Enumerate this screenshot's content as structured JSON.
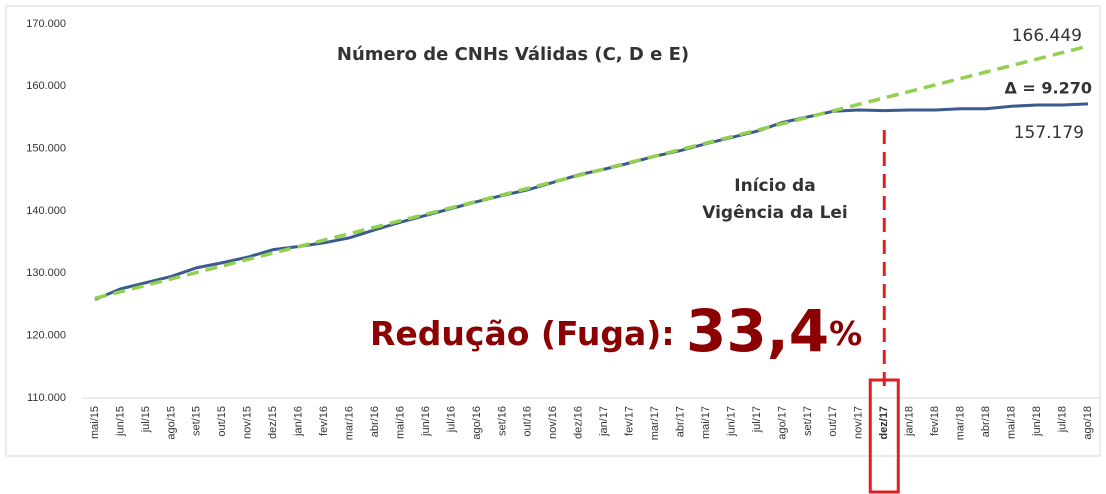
{
  "chart_data": {
    "type": "line",
    "title": "Número de CNHs Válidas (C, D e E)",
    "categories": [
      "mai/15",
      "jun/15",
      "jul/15",
      "ago/15",
      "set/15",
      "out/15",
      "nov/15",
      "dez/15",
      "jan/16",
      "fev/16",
      "mar/16",
      "abr/16",
      "mai/16",
      "jun/16",
      "jul/16",
      "ago/16",
      "set/16",
      "out/16",
      "nov/16",
      "dez/16",
      "jan/17",
      "fev/17",
      "mar/17",
      "abr/17",
      "mai/17",
      "jun/17",
      "jul/17",
      "ago/17",
      "set/17",
      "out/17",
      "nov/17",
      "dez/17",
      "jan/18",
      "fev/18",
      "mar/18",
      "abr/18",
      "mai/18",
      "jun/18",
      "jul/18",
      "ago/18"
    ],
    "series": [
      {
        "color": "#3b5b8f",
        "dash": false,
        "values": [
          125800,
          127500,
          128500,
          129500,
          130900,
          131700,
          132600,
          133800,
          134300,
          134900,
          135700,
          137000,
          138200,
          139300,
          140400,
          141500,
          142500,
          143400,
          144600,
          145800,
          146700,
          147700,
          148800,
          149700,
          150800,
          151800,
          152800,
          154200,
          155100,
          156000,
          156200,
          156100,
          156200,
          156200,
          156400,
          156400,
          156800,
          157000,
          157000,
          157179
        ]
      },
      {
        "color": "#92d050",
        "dash": true,
        "values": [
          126000,
          127037,
          128074,
          129111,
          130149,
          131186,
          132223,
          133260,
          134297,
          135334,
          136371,
          137408,
          138446,
          139483,
          140520,
          141557,
          142594,
          143631,
          144668,
          145705,
          146743,
          147780,
          148817,
          149854,
          150891,
          151928,
          152965,
          154002,
          155040,
          156077,
          157114,
          158151,
          159188,
          160225,
          161262,
          162299,
          163337,
          164374,
          165411,
          166449
        ]
      }
    ],
    "ylim": [
      110000,
      170000
    ],
    "yticks": [
      {
        "value": 110000,
        "label": "110.000"
      },
      {
        "value": 120000,
        "label": "120.000"
      },
      {
        "value": 130000,
        "label": "130.000"
      },
      {
        "value": 140000,
        "label": "140.000"
      },
      {
        "value": 150000,
        "label": "150.000"
      },
      {
        "value": 160000,
        "label": "160.000"
      },
      {
        "value": 170000,
        "label": "170.000"
      }
    ],
    "highlight_category": "dez/17",
    "highlight_color": "#e02020",
    "annotations": {
      "trend_end": "166.449",
      "delta": "Δ = 9.270",
      "actual_end": "157.179",
      "law_line1": "Início da",
      "law_line2": "Vigência da Lei",
      "reduction_prefix": "Redução (Fuga): ",
      "reduction_value": "33,4",
      "reduction_unit": "%"
    }
  }
}
